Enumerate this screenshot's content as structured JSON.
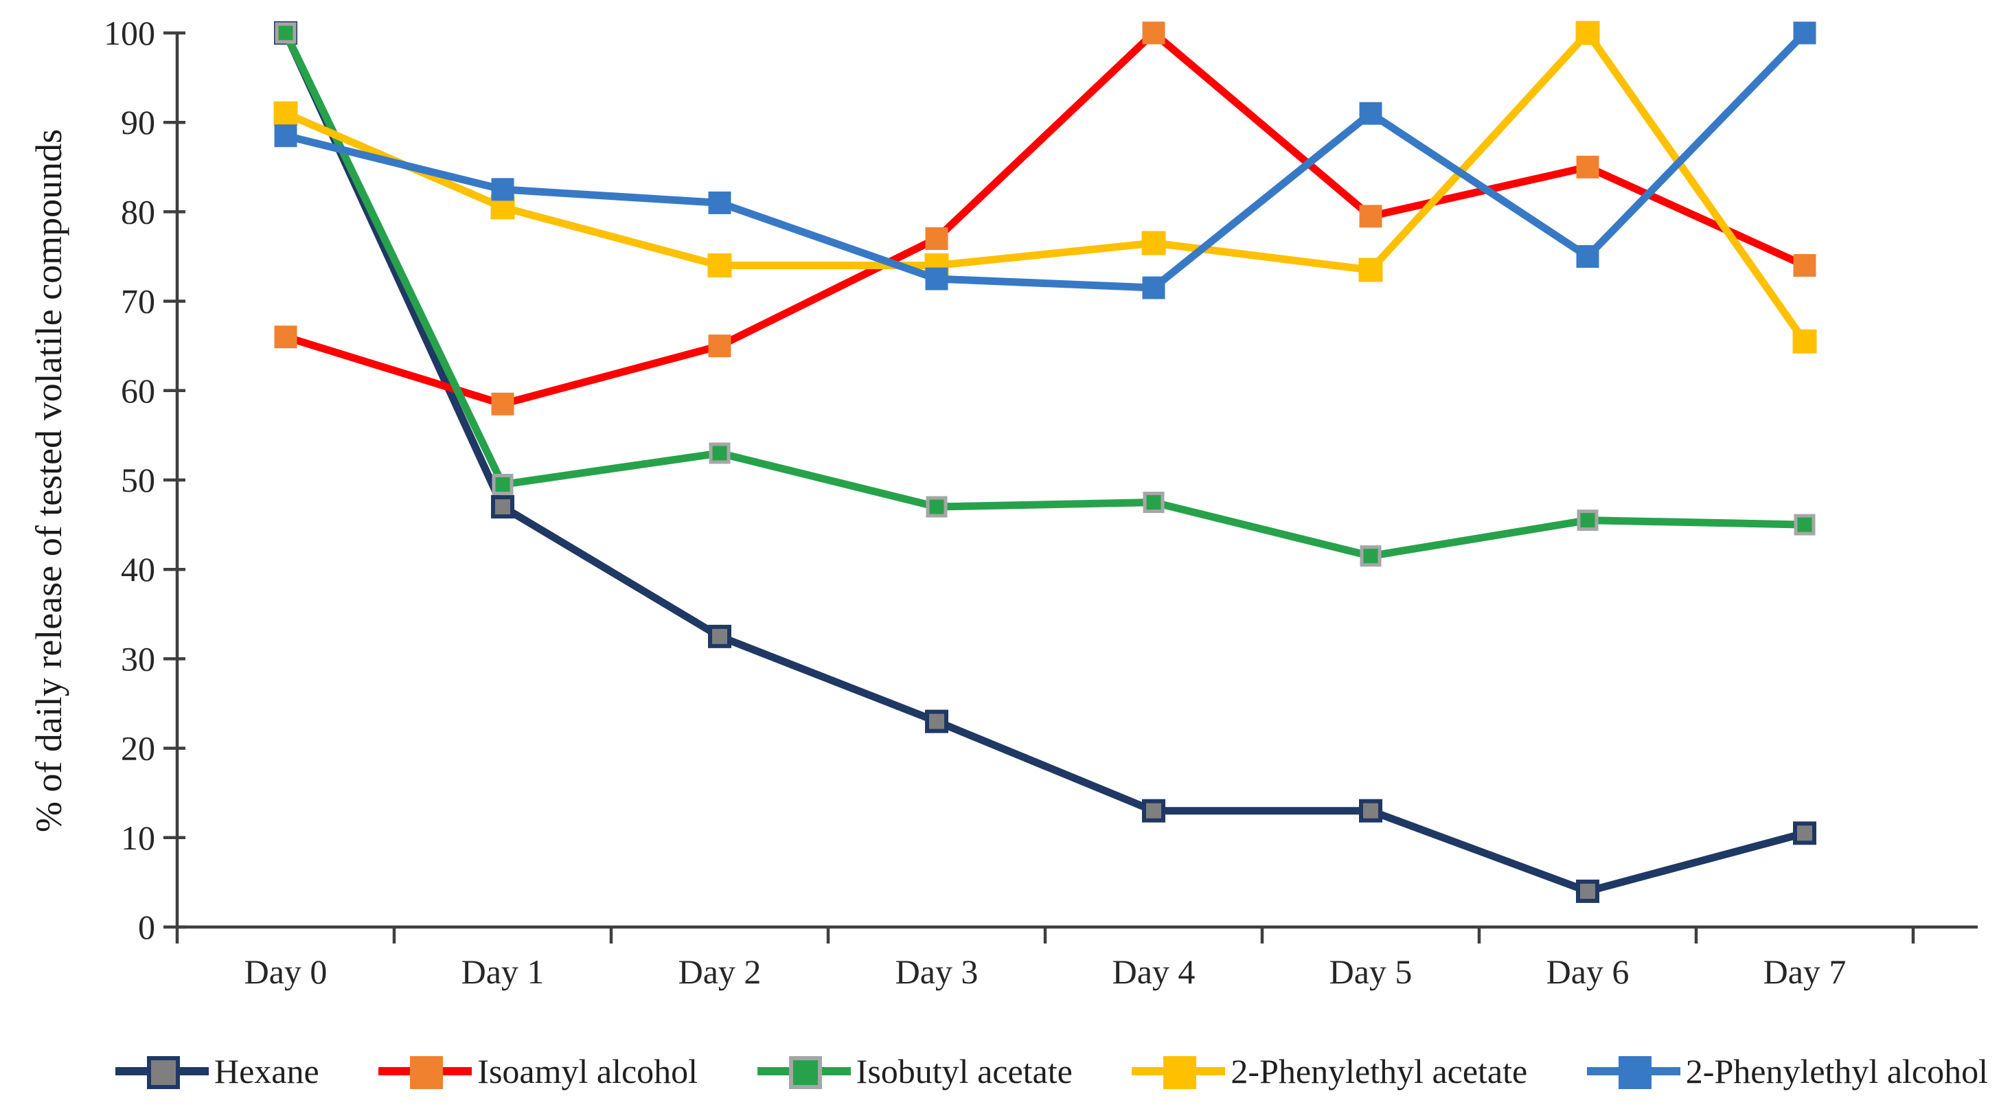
{
  "figure": {
    "y_axis_title": "% of daily release of tested volatile compounds"
  },
  "chart_data": {
    "type": "line",
    "title": "",
    "xlabel": "",
    "ylabel": "% of daily release of tested volatile compounds",
    "categories": [
      "Day 0",
      "Day 1",
      "Day 2",
      "Day 3",
      "Day 4",
      "Day 5",
      "Day 6",
      "Day 7"
    ],
    "y_ticks": [
      0,
      10,
      20,
      30,
      40,
      50,
      60,
      70,
      80,
      90,
      100
    ],
    "ylim": [
      0,
      100
    ],
    "grid": false,
    "legend_position": "bottom",
    "axis_color": "#3f3f3f",
    "text_color": "#262626",
    "series": [
      {
        "name": "Hexane",
        "color": "#1F3864",
        "marker_fill": "#7F7F7F",
        "marker_stroke": "#1F3864",
        "values": [
          100,
          47,
          32.5,
          23,
          13,
          13,
          4,
          10.5
        ]
      },
      {
        "name": "Isoamyl alcohol",
        "color": "#FE0000",
        "marker_fill": "#F0812F",
        "marker_stroke": "#F0812F",
        "values": [
          66,
          58.5,
          65,
          77,
          100,
          79.5,
          85,
          74
        ]
      },
      {
        "name": "Isobutyl acetate",
        "color": "#27A24B",
        "marker_fill": "#27A24B",
        "marker_stroke": "#A6A6A6",
        "values": [
          100,
          49.5,
          53,
          47,
          47.5,
          41.5,
          45.5,
          45
        ]
      },
      {
        "name": "2-Phenylethyl acetate",
        "color": "#FFC000",
        "marker_fill": "#FFC000",
        "marker_stroke": "#FFC000",
        "values": [
          91,
          80.5,
          74,
          74,
          76.5,
          73.5,
          100,
          65.5
        ]
      },
      {
        "name": "2-Phenylethyl alcohol",
        "color": "#3879C6",
        "marker_fill": "#3879C6",
        "marker_stroke": "#3879C6",
        "values": [
          88.5,
          82.5,
          81,
          72.5,
          71.5,
          91,
          75,
          100
        ]
      }
    ]
  }
}
